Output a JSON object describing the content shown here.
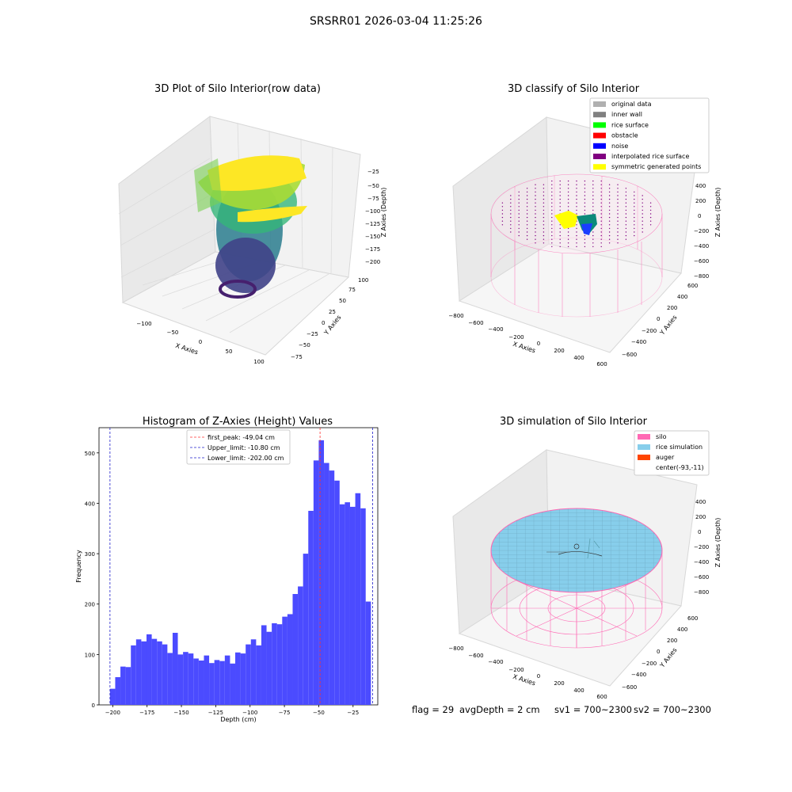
{
  "suptitle": "SRSRR01 2026-03-04 11:25:26",
  "colors": {
    "hist_bar": "#4b4bff",
    "peak_line": "#ff3333",
    "limit_line": "#2020cc",
    "silo": "#ff69b4",
    "rice": "#8ecbe0",
    "auger": "#ff4500",
    "yellow": "#ffff00",
    "teal": "#1aa6a0",
    "pane": "#f0f0f0"
  },
  "footer": {
    "flag": "flag = 29",
    "avg": "avgDepth = 2 cm",
    "sv1": "sv1 = 700~2300",
    "sv2": "sv2 = 700~2300"
  },
  "chart_data": [
    {
      "type": "scatter",
      "title": "3D Plot of Silo Interior(row data)",
      "xlabel": "X Axies",
      "ylabel": "Y Axies",
      "zlabel": "Z Axies (Depth)",
      "x_ticks": [
        "−100",
        "−50",
        "0",
        "50",
        "100"
      ],
      "y_ticks": [
        "−75",
        "−50",
        "−25",
        "0",
        "25",
        "50",
        "75",
        "100"
      ],
      "z_ticks": [
        "−25",
        "−50",
        "−75",
        "−100",
        "−125",
        "−150",
        "−175",
        "−200"
      ],
      "colormap": "viridis"
    },
    {
      "type": "scatter",
      "title": "3D classify of Silo Interior",
      "xlabel": "X Axies",
      "ylabel": "Y Axies",
      "zlabel": "Z Axies (Depth)",
      "x_ticks": [
        "−800",
        "−600",
        "−400",
        "−200",
        "0",
        "200",
        "400",
        "600"
      ],
      "y_ticks": [
        "−600",
        "−400",
        "−200",
        "0",
        "200",
        "400",
        "600"
      ],
      "z_ticks": [
        "400",
        "200",
        "0",
        "−200",
        "−400",
        "−600",
        "−800"
      ],
      "legend": [
        {
          "label": "original data",
          "color": "#b0b0b0"
        },
        {
          "label": "inner wall",
          "color": "#808080"
        },
        {
          "label": "rice surface",
          "color": "#00ff00"
        },
        {
          "label": "obstacle",
          "color": "#ff0000"
        },
        {
          "label": "noise",
          "color": "#0000ff"
        },
        {
          "label": "interpolated rice surface",
          "color": "#800080"
        },
        {
          "label": "symmetric generated points",
          "color": "#ffff00"
        }
      ],
      "legend_position": "top-right"
    },
    {
      "type": "bar",
      "title": "Histogram of Z-Axies (Height) Values",
      "xlabel": "Depth (cm)",
      "ylabel": "Frequency",
      "xlim": [
        -210,
        -7
      ],
      "ylim": [
        0,
        550
      ],
      "x_ticks": [
        -200,
        -175,
        -150,
        -125,
        -100,
        -75,
        -50,
        -25
      ],
      "y_ticks": [
        0,
        100,
        200,
        300,
        400,
        500
      ],
      "bin_start": -202.0,
      "bin_width": 3.8,
      "values": [
        32,
        55,
        76,
        75,
        118,
        130,
        126,
        140,
        131,
        126,
        120,
        103,
        143,
        100,
        105,
        102,
        92,
        88,
        98,
        83,
        89,
        87,
        98,
        82,
        104,
        102,
        120,
        130,
        118,
        158,
        145,
        162,
        160,
        175,
        180,
        220,
        235,
        300,
        385,
        485,
        525,
        480,
        465,
        445,
        398,
        402,
        393,
        420,
        390,
        205
      ],
      "vlines": [
        {
          "label": "first_peak: -49.04 cm",
          "x": -49.04,
          "role": "peak"
        },
        {
          "label": "Upper_limit: -10.80 cm",
          "x": -10.8,
          "role": "limit"
        },
        {
          "label": "Lower_limit: -202.00 cm",
          "x": -202.0,
          "role": "limit"
        }
      ],
      "legend_position": "top-center"
    },
    {
      "type": "area",
      "title": "3D simulation of Silo Interior",
      "xlabel": "X Axies",
      "ylabel": "Y Axies",
      "zlabel": "Z Axies (Depth)",
      "x_ticks": [
        "−800",
        "−600",
        "−400",
        "−200",
        "0",
        "200",
        "400",
        "600"
      ],
      "y_ticks": [
        "−600",
        "−400",
        "−200",
        "0",
        "200",
        "400",
        "600"
      ],
      "z_ticks": [
        "400",
        "200",
        "0",
        "−200",
        "−400",
        "−600",
        "−800"
      ],
      "legend": [
        {
          "label": "silo",
          "color": "#ff69b4"
        },
        {
          "label": "rice simulation",
          "color": "#87ceeb"
        },
        {
          "label": "auger",
          "color": "#ff4500"
        },
        {
          "label": "center(-93,-11)",
          "color": ""
        }
      ],
      "legend_position": "top-right"
    }
  ]
}
